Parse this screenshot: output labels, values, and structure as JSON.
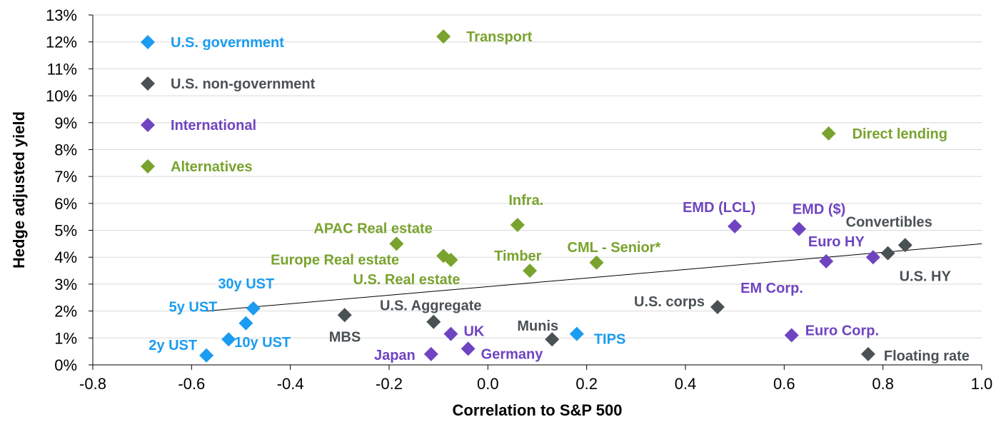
{
  "chart_data": {
    "type": "scatter",
    "xlabel": "Correlation to S&P 500",
    "ylabel": "Hedge adjusted yield",
    "xlim": [
      -0.8,
      1.0
    ],
    "ylim": [
      0,
      13
    ],
    "x_ticks": [
      "-0.8",
      "-0.6",
      "-0.4",
      "-0.2",
      "0.0",
      "0.2",
      "0.4",
      "0.6",
      "0.8",
      "1.0"
    ],
    "y_ticks": [
      "0%",
      "1%",
      "2%",
      "3%",
      "4%",
      "5%",
      "6%",
      "7%",
      "8%",
      "9%",
      "10%",
      "11%",
      "12%",
      "13%"
    ],
    "grid": "horizontal",
    "legend_position": "top-left",
    "trendline": {
      "x": [
        -0.57,
        1.0
      ],
      "y": [
        2.0,
        4.5
      ]
    },
    "series": [
      {
        "name": "U.S. government",
        "color": "#1a9cf0",
        "points": [
          {
            "label": "2y UST",
            "x": -0.57,
            "y": 0.35
          },
          {
            "label": "5y UST",
            "x": -0.49,
            "y": 1.55
          },
          {
            "label": "10y UST",
            "x": -0.525,
            "y": 0.95
          },
          {
            "label": "30y UST",
            "x": -0.475,
            "y": 2.1
          },
          {
            "label": "TIPS",
            "x": 0.18,
            "y": 1.15
          }
        ]
      },
      {
        "name": "U.S. non-government",
        "color": "#4a5155",
        "points": [
          {
            "label": "MBS",
            "x": -0.29,
            "y": 1.85
          },
          {
            "label": "U.S. Aggregate",
            "x": -0.11,
            "y": 1.6
          },
          {
            "label": "Munis",
            "x": 0.13,
            "y": 0.95
          },
          {
            "label": "U.S. corps",
            "x": 0.465,
            "y": 2.15
          },
          {
            "label": "Convertibles",
            "x": 0.845,
            "y": 4.45
          },
          {
            "label": "U.S. HY",
            "x": 0.81,
            "y": 4.15
          },
          {
            "label": "Floating rate",
            "x": 0.77,
            "y": 0.4
          }
        ]
      },
      {
        "name": "International",
        "color": "#6f44c1",
        "points": [
          {
            "label": "Japan",
            "x": -0.115,
            "y": 0.4
          },
          {
            "label": "UK",
            "x": -0.075,
            "y": 1.15
          },
          {
            "label": "Germany",
            "x": -0.04,
            "y": 0.6
          },
          {
            "label": "EMD (LCL)",
            "x": 0.5,
            "y": 5.15
          },
          {
            "label": "EMD ($)",
            "x": 0.63,
            "y": 5.05
          },
          {
            "label": "Euro HY",
            "x": 0.78,
            "y": 4.0
          },
          {
            "label": "EM Corp.",
            "x": 0.685,
            "y": 3.85
          },
          {
            "label": "Euro Corp.",
            "x": 0.615,
            "y": 1.1
          }
        ]
      },
      {
        "name": "Alternatives",
        "color": "#79a32e",
        "points": [
          {
            "label": "Transport",
            "x": -0.09,
            "y": 12.2
          },
          {
            "label": "Direct lending",
            "x": 0.69,
            "y": 8.6
          },
          {
            "label": "Infra.",
            "x": 0.06,
            "y": 5.2
          },
          {
            "label": "APAC Real estate",
            "x": -0.185,
            "y": 4.5
          },
          {
            "label": "Europe Real estate",
            "x": -0.09,
            "y": 4.05
          },
          {
            "label": "U.S. Real estate",
            "x": -0.075,
            "y": 3.9
          },
          {
            "label": "Timber",
            "x": 0.085,
            "y": 3.5
          },
          {
            "label": "CML - Senior*",
            "x": 0.22,
            "y": 3.8
          }
        ]
      }
    ]
  }
}
